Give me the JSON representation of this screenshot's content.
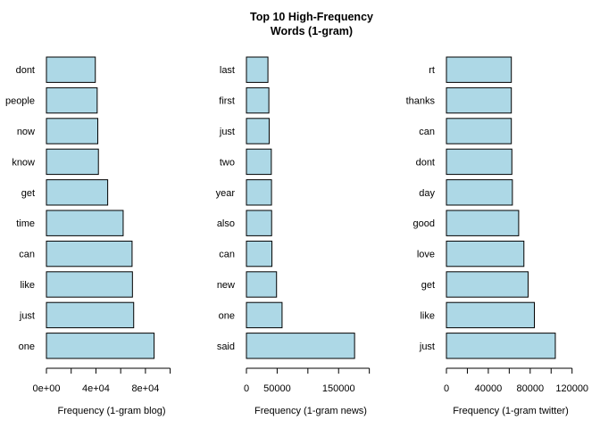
{
  "title_lines": [
    "Top 10 High-Frequency",
    "Words (1-gram)"
  ],
  "bar_color": "#add8e6",
  "chart_data": [
    {
      "type": "bar",
      "orientation": "horizontal",
      "categories": [
        "one",
        "just",
        "like",
        "can",
        "time",
        "get",
        "know",
        "now",
        "people",
        "dont"
      ],
      "values": [
        87000,
        70500,
        69500,
        69200,
        62000,
        49500,
        42000,
        41500,
        41000,
        39500
      ],
      "xlabel": "Frequency (1-gram blog)",
      "xlim": [
        0,
        100000
      ],
      "ticks": [
        0,
        20000,
        40000,
        60000,
        80000,
        100000
      ],
      "tick_labels": [
        "0e+00",
        "",
        "4e+04",
        "",
        "8e+04",
        ""
      ]
    },
    {
      "type": "bar",
      "orientation": "horizontal",
      "categories": [
        "said",
        "one",
        "new",
        "can",
        "also",
        "year",
        "two",
        "just",
        "first",
        "last"
      ],
      "values": [
        176000,
        58000,
        49000,
        41500,
        41000,
        40800,
        40500,
        37000,
        36500,
        35000
      ],
      "xlabel": "Frequency (1-gram news)",
      "xlim": [
        0,
        200000
      ],
      "ticks": [
        0,
        50000,
        100000,
        150000,
        200000
      ],
      "tick_labels": [
        "0",
        "50000",
        "",
        "150000",
        ""
      ]
    },
    {
      "type": "bar",
      "orientation": "horizontal",
      "categories": [
        "just",
        "like",
        "get",
        "love",
        "good",
        "day",
        "dont",
        "can",
        "thanks",
        "rt"
      ],
      "values": [
        104000,
        84000,
        78000,
        74000,
        69000,
        63000,
        62500,
        62000,
        62000,
        62000
      ],
      "xlabel": "Frequency (1-gram twitter)",
      "xlim": [
        0,
        120000
      ],
      "ticks": [
        0,
        20000,
        40000,
        60000,
        80000,
        100000,
        120000
      ],
      "tick_labels": [
        "0",
        "",
        "40000",
        "",
        "80000",
        "",
        "120000"
      ]
    }
  ]
}
